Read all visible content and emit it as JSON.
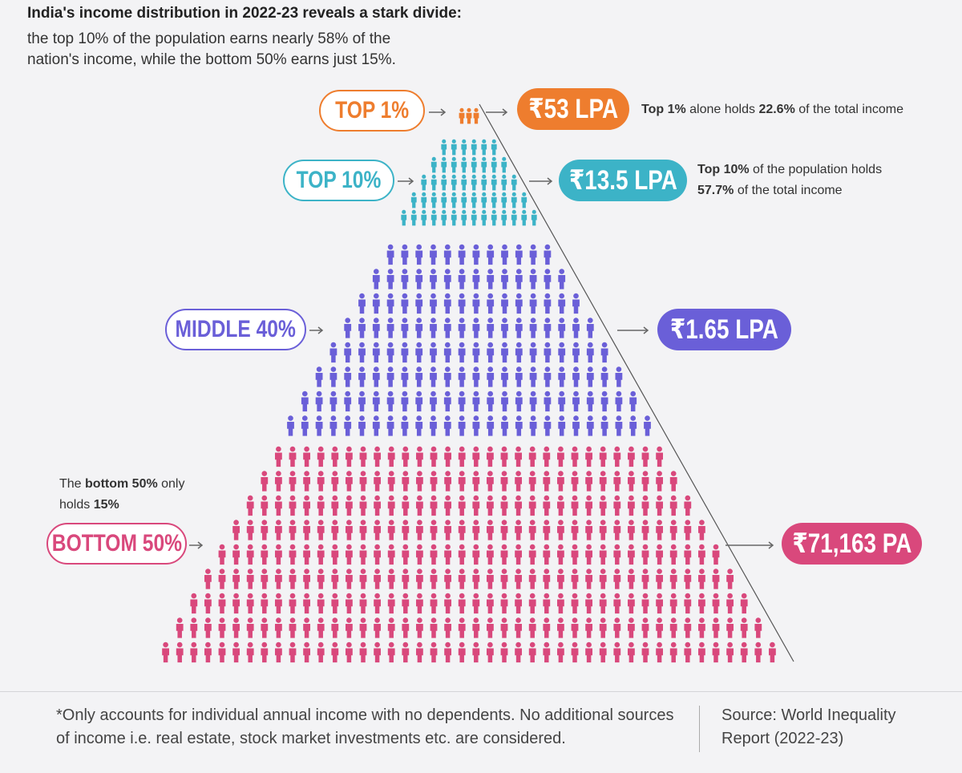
{
  "header": {
    "title": "India's income distribution in 2022-23 reveals a stark divide:",
    "subtitle": "the top 10% of the population earns nearly 58% of the nation's income, while the bottom 50% earns just 15%."
  },
  "tiers": [
    {
      "label": "TOP 1%",
      "income": "₹53 LPA",
      "color": "#ee7d2e",
      "note": [
        {
          "text": "Top 1%",
          "bold": true
        },
        {
          "text": " alone holds "
        },
        {
          "text": "22.6%",
          "bold": true
        },
        {
          "text": " of the total income"
        }
      ]
    },
    {
      "label": "TOP 10%",
      "income": "₹13.5 LPA",
      "color": "#3cb3c7",
      "note": [
        {
          "text": "Top 10%",
          "bold": true
        },
        {
          "text": " of the population holds "
        },
        {
          "text": "57.7%",
          "bold": true
        },
        {
          "text": " of the total income"
        }
      ]
    },
    {
      "label": "MIDDLE 40%",
      "income": "₹1.65 LPA",
      "color": "#6a5fd8"
    },
    {
      "label": "BOTTOM 50%",
      "income": "₹71,163 PA",
      "color": "#d9487c",
      "note": [
        {
          "text": "The "
        },
        {
          "text": "bottom 50%",
          "bold": true
        },
        {
          "text": " only holds "
        },
        {
          "text": "15%",
          "bold": true
        }
      ]
    }
  ],
  "footer": {
    "footnote": "*Only accounts for individual annual income with no dependents. No additional sources of income i.e. real estate, stock market investments etc. are considered.",
    "source": "Source: World Inequality Report (2022-23)"
  }
}
